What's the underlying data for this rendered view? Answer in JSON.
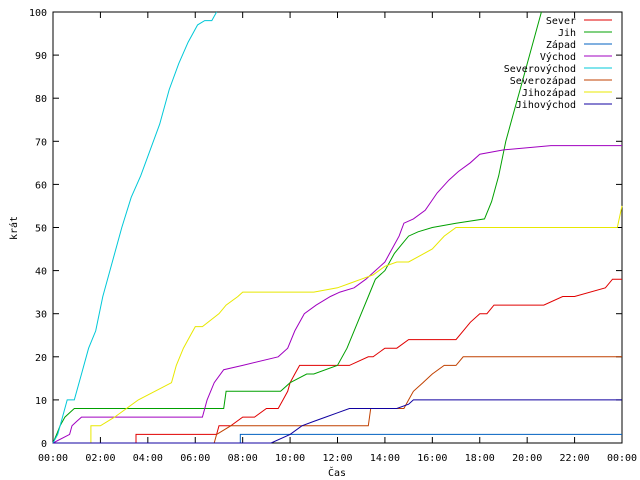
{
  "chart_data": {
    "type": "line",
    "title": "",
    "xlabel": "Čas",
    "ylabel": "krát",
    "xlim": [
      0,
      24
    ],
    "ylim": [
      0,
      100
    ],
    "x_ticks": [
      0,
      2,
      4,
      6,
      8,
      10,
      12,
      14,
      16,
      18,
      20,
      22,
      24
    ],
    "x_tick_labels": [
      "00:00",
      "02:00",
      "04:00",
      "06:00",
      "08:00",
      "10:00",
      "12:00",
      "14:00",
      "16:00",
      "18:00",
      "20:00",
      "22:00",
      "00:00"
    ],
    "y_ticks": [
      0,
      10,
      20,
      30,
      40,
      50,
      60,
      70,
      80,
      90,
      100
    ],
    "y_tick_labels": [
      "0",
      "10",
      "20",
      "30",
      "40",
      "50",
      "60",
      "70",
      "80",
      "90",
      "100"
    ],
    "grid": false,
    "legend_position": "top-right",
    "series": [
      {
        "name": "Sever",
        "color": "#e00000",
        "x": [
          0,
          3.5,
          3.5,
          6.9,
          7.0,
          7.5,
          8.0,
          8.5,
          9.0,
          9.5,
          9.7,
          9.9,
          10.0,
          10.2,
          10.4,
          12.5,
          13.3,
          13.5,
          14.0,
          14.5,
          15.0,
          17.0,
          17.3,
          17.6,
          18.0,
          18.3,
          18.6,
          20.7,
          21.5,
          22.0,
          23.3,
          23.6,
          23.9,
          24.0
        ],
        "y": [
          0,
          0,
          2,
          2,
          4,
          4,
          6,
          6,
          8,
          8,
          10,
          12,
          14,
          16,
          18,
          18,
          20,
          20,
          22,
          22,
          24,
          24,
          26,
          28,
          30,
          30,
          32,
          32,
          34,
          34,
          36,
          38,
          38,
          38
        ]
      },
      {
        "name": "Jih",
        "color": "#00a000",
        "x": [
          0,
          0.15,
          0.3,
          0.5,
          0.9,
          7.2,
          7.3,
          9.6,
          10.0,
          10.7,
          11.0,
          12.0,
          12.4,
          12.7,
          13.0,
          13.3,
          13.6,
          14.0,
          14.4,
          14.7,
          15.0,
          15.4,
          16.0,
          17.0,
          18.2,
          18.5,
          18.8,
          19.1,
          19.4,
          19.7,
          20.0,
          20.3,
          20.6
        ],
        "y": [
          0,
          2,
          4,
          6,
          8,
          8,
          12,
          12,
          14,
          16,
          16,
          18,
          22,
          26,
          30,
          34,
          38,
          40,
          44,
          46,
          48,
          49,
          50,
          51,
          52,
          56,
          62,
          70,
          76,
          82,
          88,
          94,
          100
        ]
      },
      {
        "name": "Západ",
        "color": "#0060c0",
        "x": [
          0,
          7.9,
          7.9,
          24.0
        ],
        "y": [
          0,
          0,
          2,
          2
        ]
      },
      {
        "name": "Východ",
        "color": "#a000c0",
        "x": [
          0,
          0.7,
          0.8,
          1.0,
          1.2,
          6.3,
          6.5,
          6.8,
          7.2,
          8.0,
          9.5,
          9.9,
          10.2,
          10.6,
          11.1,
          11.7,
          12.1,
          12.7,
          13.2,
          13.6,
          14.0,
          14.3,
          14.6,
          14.8,
          15.2,
          15.7,
          16.2,
          16.7,
          17.1,
          17.6,
          18.0,
          19.0,
          21.0,
          24.0
        ],
        "y": [
          0,
          2,
          4,
          5,
          6,
          6,
          10,
          14,
          17,
          18,
          20,
          22,
          26,
          30,
          32,
          34,
          35,
          36,
          38,
          40,
          42,
          45,
          48,
          51,
          52,
          54,
          58,
          61,
          63,
          65,
          67,
          68,
          69,
          69
        ]
      },
      {
        "name": "Severovýchod",
        "color": "#00c8d8",
        "x": [
          0,
          0.2,
          0.4,
          0.6,
          0.9,
          1.2,
          1.5,
          1.8,
          2.1,
          2.5,
          2.9,
          3.3,
          3.7,
          4.1,
          4.5,
          4.9,
          5.3,
          5.7,
          6.1,
          6.4,
          6.7,
          6.9
        ],
        "y": [
          0,
          2,
          6,
          10,
          10,
          16,
          22,
          26,
          34,
          42,
          50,
          57,
          62,
          68,
          74,
          82,
          88,
          93,
          97,
          98,
          98,
          100
        ]
      },
      {
        "name": "Severozápad",
        "color": "#c04000",
        "x": [
          0,
          6.8,
          6.9,
          7.5,
          13.3,
          13.4,
          14.8,
          15.0,
          15.2,
          15.6,
          16.0,
          16.5,
          17.0,
          17.3,
          17.6,
          18.0,
          24.0
        ],
        "y": [
          0,
          0,
          2,
          4,
          4,
          8,
          8,
          10,
          12,
          14,
          16,
          18,
          18,
          20,
          20,
          20,
          20
        ]
      },
      {
        "name": "Jihozápad",
        "color": "#e8e800",
        "x": [
          0,
          1.6,
          1.6,
          2.0,
          2.6,
          3.1,
          3.6,
          4.3,
          5.0,
          5.2,
          5.5,
          5.8,
          6.0,
          6.3,
          7.0,
          7.3,
          7.8,
          8.0,
          8.5,
          9.5,
          10.0,
          11.0,
          12.0,
          12.5,
          13.0,
          13.5,
          14.0,
          14.5,
          15.0,
          16.0,
          16.5,
          17.0,
          23.8,
          24.0
        ],
        "y": [
          0,
          0,
          4,
          4,
          6,
          8,
          10,
          12,
          14,
          18,
          22,
          25,
          27,
          27,
          30,
          32,
          34,
          35,
          35,
          35,
          35,
          35,
          36,
          37,
          38,
          39,
          41,
          42,
          42,
          45,
          48,
          50,
          50,
          55
        ]
      },
      {
        "name": "Jihovýchod",
        "color": "#1000a0",
        "x": [
          0,
          9.2,
          10.0,
          10.5,
          11.0,
          11.5,
          12.0,
          12.5,
          13.0,
          14.0,
          14.5,
          15.0,
          15.2,
          24.0
        ],
        "y": [
          0,
          0,
          2,
          4,
          5,
          6,
          7,
          8,
          8,
          8,
          8,
          9,
          10,
          10
        ]
      }
    ]
  }
}
